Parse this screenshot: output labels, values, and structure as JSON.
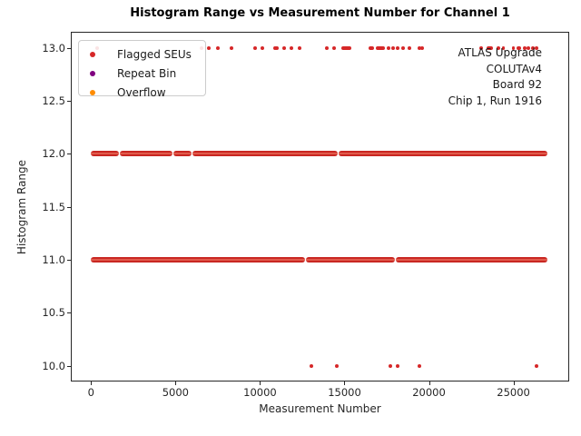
{
  "figure": {
    "background": "#ffffff"
  },
  "chart_data": {
    "type": "scatter",
    "title": "Histogram Range vs Measurement Number for Channel 1",
    "xlabel": "Measurement Number",
    "ylabel": "Histogram Range",
    "xlim": [
      -1200,
      28300
    ],
    "ylim": [
      9.85,
      13.15
    ],
    "xtick_values": [
      0,
      5000,
      10000,
      15000,
      20000,
      25000
    ],
    "xtick_labels": [
      "0",
      "5000",
      "10000",
      "15000",
      "20000",
      "25000"
    ],
    "ytick_values": [
      10.0,
      10.5,
      11.0,
      11.5,
      12.0,
      12.5,
      13.0
    ],
    "ytick_labels": [
      "10.0",
      "10.5",
      "11.0",
      "11.5",
      "12.0",
      "12.5",
      "13.0"
    ],
    "grid": true,
    "grid_color": "#cccccc",
    "legend": {
      "position": "upper left",
      "entries": [
        {
          "label": "Flagged SEUs",
          "color": "#d62728"
        },
        {
          "label": "Repeat Bin",
          "color": "#800080"
        },
        {
          "label": "Overflow",
          "color": "#ff8c00"
        }
      ]
    },
    "annotation": {
      "align": "right",
      "lines": [
        "ATLAS Upgrade",
        "COLUTAv4",
        "Board 92",
        "Chip 1, Run 1916"
      ]
    },
    "series": [
      {
        "name": "Flagged SEUs",
        "color": "#d62728",
        "bands": [
          {
            "y": 12,
            "segments": [
              [
                0,
                1630
              ],
              [
                1700,
                4820
              ],
              [
                4890,
                5930
              ],
              [
                6000,
                14580
              ],
              [
                14650,
                27000
              ]
            ]
          },
          {
            "y": 11,
            "segments": [
              [
                0,
                12650
              ],
              [
                12740,
                17980
              ],
              [
                18060,
                27000
              ]
            ]
          }
        ],
        "clusters": [
          {
            "y": 13,
            "ranges": [
              [
                14800,
                15400
              ],
              [
                16400,
                16750
              ],
              [
                16850,
                17400
              ],
              [
                23400,
                23800
              ],
              [
                24000,
                24200
              ],
              [
                24300,
                24500
              ],
              [
                24900,
                25100
              ],
              [
                25200,
                25450
              ]
            ]
          }
        ],
        "points": [
          {
            "y": 13,
            "x": [
              350,
              6540,
              6990,
              7480,
              8310,
              9700,
              10150,
              10870,
              11020,
              11415,
              11870,
              12320,
              13945,
              14400,
              17615,
              17865,
              18160,
              18465,
              18825,
              19420,
              19600,
              23070,
              25690,
              25905,
              26150,
              26350
            ]
          },
          {
            "y": 10,
            "x": [
              13040,
              14545,
              17705,
              18135,
              19420,
              26345
            ]
          }
        ]
      }
    ]
  }
}
